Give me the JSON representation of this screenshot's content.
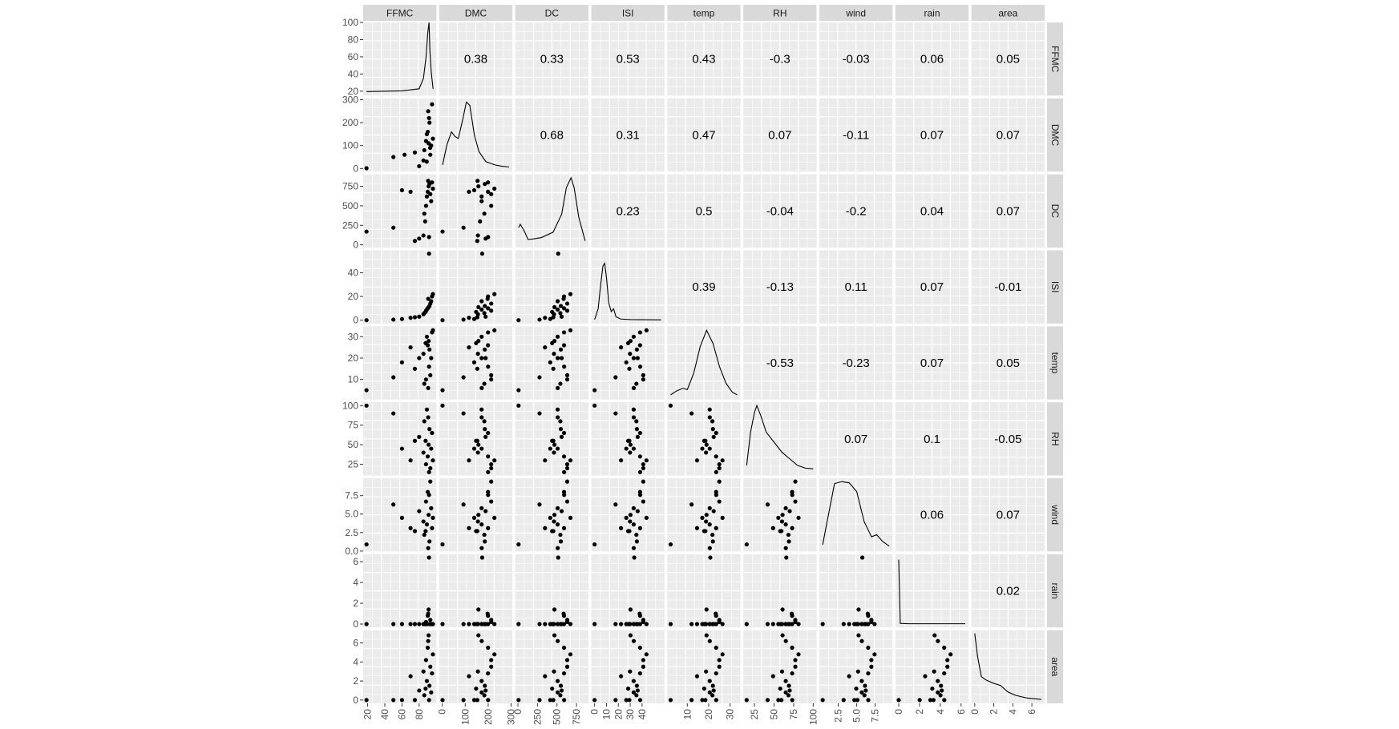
{
  "chart_data": {
    "type": "scatter",
    "variables": [
      "FFMC",
      "DMC",
      "DC",
      "ISI",
      "temp",
      "RH",
      "wind",
      "rain",
      "area"
    ],
    "ranges": {
      "FFMC": [
        18.7,
        96.2
      ],
      "DMC": [
        1.1,
        291.3
      ],
      "DC": [
        7.9,
        860.6
      ],
      "ISI": [
        0,
        56.1
      ],
      "temp": [
        2.2,
        33.3
      ],
      "RH": [
        15,
        100
      ],
      "wind": [
        0.4,
        9.4
      ],
      "rain": [
        0,
        6.4
      ],
      "area": [
        0,
        6.99
      ]
    },
    "x_ticks": {
      "FFMC": [
        "20",
        "40",
        "60",
        "80"
      ],
      "DMC": [
        "0",
        "100",
        "200",
        "300"
      ],
      "DC": [
        "0",
        "250",
        "500",
        "750"
      ],
      "ISI": [
        "0",
        "10",
        "20",
        "30",
        "40"
      ],
      "temp": [
        "10",
        "20",
        "30"
      ],
      "RH": [
        "25",
        "50",
        "75",
        "100"
      ],
      "wind": [
        "2.5",
        "5.0",
        "7.5"
      ],
      "rain": [
        "0",
        "2",
        "4",
        "6"
      ],
      "area": [
        "0",
        "2",
        "4",
        "6"
      ]
    },
    "y_ticks": {
      "FFMC": [
        "20",
        "40",
        "60",
        "80",
        "100"
      ],
      "DMC": [
        "0",
        "100",
        "200",
        "300"
      ],
      "DC": [
        "0",
        "250",
        "500",
        "750"
      ],
      "ISI": [
        "0",
        "20",
        "40"
      ],
      "temp": [
        "10",
        "20",
        "30"
      ],
      "RH": [
        "25",
        "50",
        "75",
        "100"
      ],
      "wind": [
        "0.0",
        "2.5",
        "5.0",
        "7.5"
      ],
      "rain": [
        "0",
        "2",
        "4",
        "6"
      ],
      "area": [
        "0",
        "2",
        "4",
        "6"
      ]
    },
    "correlations": [
      {
        "row": "FFMC",
        "col": "DMC",
        "value": "0.38"
      },
      {
        "row": "FFMC",
        "col": "DC",
        "value": "0.33"
      },
      {
        "row": "FFMC",
        "col": "ISI",
        "value": "0.53"
      },
      {
        "row": "FFMC",
        "col": "temp",
        "value": "0.43"
      },
      {
        "row": "FFMC",
        "col": "RH",
        "value": "-0.3"
      },
      {
        "row": "FFMC",
        "col": "wind",
        "value": "-0.03"
      },
      {
        "row": "FFMC",
        "col": "rain",
        "value": "0.06"
      },
      {
        "row": "FFMC",
        "col": "area",
        "value": "0.05"
      },
      {
        "row": "DMC",
        "col": "DC",
        "value": "0.68"
      },
      {
        "row": "DMC",
        "col": "ISI",
        "value": "0.31"
      },
      {
        "row": "DMC",
        "col": "temp",
        "value": "0.47"
      },
      {
        "row": "DMC",
        "col": "RH",
        "value": "0.07"
      },
      {
        "row": "DMC",
        "col": "wind",
        "value": "-0.11"
      },
      {
        "row": "DMC",
        "col": "rain",
        "value": "0.07"
      },
      {
        "row": "DMC",
        "col": "area",
        "value": "0.07"
      },
      {
        "row": "DC",
        "col": "ISI",
        "value": "0.23"
      },
      {
        "row": "DC",
        "col": "temp",
        "value": "0.5"
      },
      {
        "row": "DC",
        "col": "RH",
        "value": "-0.04"
      },
      {
        "row": "DC",
        "col": "wind",
        "value": "-0.2"
      },
      {
        "row": "DC",
        "col": "rain",
        "value": "0.04"
      },
      {
        "row": "DC",
        "col": "area",
        "value": "0.07"
      },
      {
        "row": "ISI",
        "col": "temp",
        "value": "0.39"
      },
      {
        "row": "ISI",
        "col": "RH",
        "value": "-0.13"
      },
      {
        "row": "ISI",
        "col": "wind",
        "value": "0.11"
      },
      {
        "row": "ISI",
        "col": "rain",
        "value": "0.07"
      },
      {
        "row": "ISI",
        "col": "area",
        "value": "-0.01"
      },
      {
        "row": "temp",
        "col": "RH",
        "value": "-0.53"
      },
      {
        "row": "temp",
        "col": "wind",
        "value": "-0.23"
      },
      {
        "row": "temp",
        "col": "rain",
        "value": "0.07"
      },
      {
        "row": "temp",
        "col": "area",
        "value": "0.05"
      },
      {
        "row": "RH",
        "col": "wind",
        "value": "0.07"
      },
      {
        "row": "RH",
        "col": "rain",
        "value": "0.1"
      },
      {
        "row": "RH",
        "col": "area",
        "value": "-0.05"
      },
      {
        "row": "wind",
        "col": "rain",
        "value": "0.06"
      },
      {
        "row": "wind",
        "col": "area",
        "value": "0.07"
      },
      {
        "row": "rain",
        "col": "area",
        "value": "0.02"
      }
    ],
    "density_shapes": {
      "FFMC": [
        [
          18.7,
          0.01
        ],
        [
          60,
          0.02
        ],
        [
          80,
          0.05
        ],
        [
          85,
          0.2
        ],
        [
          88,
          0.5
        ],
        [
          90,
          0.85
        ],
        [
          91.5,
          1.0
        ],
        [
          92.5,
          0.6
        ],
        [
          94,
          0.3
        ],
        [
          96.2,
          0.05
        ]
      ],
      "DMC": [
        [
          1.1,
          0.05
        ],
        [
          20,
          0.35
        ],
        [
          40,
          0.55
        ],
        [
          55,
          0.48
        ],
        [
          70,
          0.45
        ],
        [
          90,
          0.75
        ],
        [
          105,
          1.0
        ],
        [
          120,
          0.95
        ],
        [
          140,
          0.5
        ],
        [
          160,
          0.25
        ],
        [
          190,
          0.1
        ],
        [
          230,
          0.05
        ],
        [
          260,
          0.03
        ],
        [
          291.3,
          0.02
        ]
      ],
      "DC": [
        [
          7.9,
          0.25
        ],
        [
          30,
          0.3
        ],
        [
          80,
          0.2
        ],
        [
          130,
          0.07
        ],
        [
          200,
          0.08
        ],
        [
          300,
          0.1
        ],
        [
          450,
          0.18
        ],
        [
          560,
          0.45
        ],
        [
          620,
          0.85
        ],
        [
          680,
          1.0
        ],
        [
          720,
          0.85
        ],
        [
          780,
          0.4
        ],
        [
          860.6,
          0.05
        ]
      ],
      "ISI": [
        [
          0,
          0.01
        ],
        [
          3,
          0.2
        ],
        [
          5,
          0.6
        ],
        [
          7,
          0.95
        ],
        [
          8.5,
          1.0
        ],
        [
          10,
          0.75
        ],
        [
          12,
          0.3
        ],
        [
          14,
          0.15
        ],
        [
          16,
          0.2
        ],
        [
          18,
          0.06
        ],
        [
          22,
          0.02
        ],
        [
          30,
          0.01
        ],
        [
          56.1,
          0.005
        ]
      ],
      "temp": [
        [
          2.2,
          0.02
        ],
        [
          5,
          0.08
        ],
        [
          8,
          0.12
        ],
        [
          10,
          0.1
        ],
        [
          13,
          0.35
        ],
        [
          16,
          0.75
        ],
        [
          19,
          1.0
        ],
        [
          22,
          0.8
        ],
        [
          25,
          0.45
        ],
        [
          28,
          0.2
        ],
        [
          31,
          0.06
        ],
        [
          33.3,
          0.02
        ]
      ],
      "RH": [
        [
          15,
          0.1
        ],
        [
          20,
          0.6
        ],
        [
          25,
          0.9
        ],
        [
          28,
          1.0
        ],
        [
          33,
          0.85
        ],
        [
          40,
          0.6
        ],
        [
          50,
          0.45
        ],
        [
          60,
          0.3
        ],
        [
          70,
          0.2
        ],
        [
          80,
          0.1
        ],
        [
          90,
          0.06
        ],
        [
          100,
          0.05
        ]
      ],
      "wind": [
        [
          0.4,
          0.05
        ],
        [
          1,
          0.4
        ],
        [
          2,
          0.97
        ],
        [
          3,
          1.0
        ],
        [
          4,
          0.98
        ],
        [
          5,
          0.85
        ],
        [
          6,
          0.4
        ],
        [
          7,
          0.17
        ],
        [
          7.7,
          0.2
        ],
        [
          8.5,
          0.1
        ],
        [
          9.4,
          0.03
        ]
      ],
      "rain": [
        [
          0,
          1.0
        ],
        [
          0.15,
          0.01
        ],
        [
          1,
          0.005
        ],
        [
          6.4,
          0.005
        ]
      ],
      "area": [
        [
          0,
          1.0
        ],
        [
          0.3,
          0.65
        ],
        [
          0.7,
          0.35
        ],
        [
          1.2,
          0.3
        ],
        [
          2,
          0.25
        ],
        [
          2.7,
          0.22
        ],
        [
          3.5,
          0.12
        ],
        [
          4.3,
          0.07
        ],
        [
          5.5,
          0.03
        ],
        [
          6.99,
          0.01
        ]
      ]
    },
    "density_peak": {
      "FFMC": 100,
      "DMC": 290,
      "DC": 860,
      "ISI": 48,
      "temp": 33,
      "RH": 100,
      "wind": 9.4,
      "rain": 6.2,
      "area": 7.0
    },
    "scatter_points": {
      "FFMC": [
        [
          18.7,
          0.0
        ],
        [
          50,
          0
        ],
        [
          75,
          0.0
        ],
        [
          85,
          0.0
        ],
        [
          88.5,
          0.0
        ],
        [
          90,
          0.0
        ],
        [
          91,
          0.0
        ],
        [
          92.5,
          0.0
        ]
      ],
      "DMC": [
        [
          18.7,
          1.1
        ],
        [
          50,
          50
        ],
        [
          63,
          60
        ],
        [
          75,
          70
        ],
        [
          80,
          10
        ],
        [
          85,
          35
        ],
        [
          86,
          80
        ],
        [
          88,
          120
        ],
        [
          89,
          150
        ],
        [
          90,
          160
        ],
        [
          91,
          110
        ],
        [
          92,
          200
        ],
        [
          93,
          60
        ],
        [
          94,
          100
        ],
        [
          95,
          280
        ],
        [
          90.5,
          250
        ],
        [
          91.5,
          220
        ],
        [
          88.8,
          30
        ],
        [
          92.8,
          90
        ],
        [
          96,
          130
        ]
      ],
      "DC": [
        [
          18.7,
          170
        ],
        [
          50,
          220
        ],
        [
          60,
          700
        ],
        [
          70,
          680
        ],
        [
          75,
          50
        ],
        [
          80,
          80
        ],
        [
          85,
          120
        ],
        [
          86,
          400
        ],
        [
          88,
          500
        ],
        [
          89,
          620
        ],
        [
          90,
          680
        ],
        [
          91,
          750
        ],
        [
          92,
          780
        ],
        [
          93,
          650
        ],
        [
          94,
          560
        ],
        [
          95,
          800
        ],
        [
          96,
          720
        ],
        [
          87,
          300
        ],
        [
          91.5,
          100
        ],
        [
          90.5,
          820
        ]
      ],
      "ISI": [
        [
          18.7,
          0.0
        ],
        [
          50,
          0.5
        ],
        [
          60,
          1
        ],
        [
          70,
          2
        ],
        [
          75,
          2.5
        ],
        [
          80,
          3
        ],
        [
          85,
          5
        ],
        [
          86,
          6
        ],
        [
          88,
          8
        ],
        [
          89,
          9
        ],
        [
          90,
          10
        ],
        [
          91,
          11
        ],
        [
          92,
          12
        ],
        [
          93,
          14
        ],
        [
          94,
          16
        ],
        [
          95,
          20
        ],
        [
          96,
          22
        ],
        [
          91.5,
          56.1
        ],
        [
          90.5,
          18
        ],
        [
          87.5,
          7
        ]
      ],
      "temp": [
        [
          18.7,
          5
        ],
        [
          50,
          11
        ],
        [
          60,
          18
        ],
        [
          70,
          25
        ],
        [
          75,
          15
        ],
        [
          80,
          20
        ],
        [
          85,
          22
        ],
        [
          86,
          8
        ],
        [
          88,
          10
        ],
        [
          89,
          30
        ],
        [
          90,
          26
        ],
        [
          91,
          28
        ],
        [
          92,
          24
        ],
        [
          93,
          12
        ],
        [
          94,
          20
        ],
        [
          95,
          32
        ],
        [
          96,
          33
        ],
        [
          90.5,
          6
        ],
        [
          91.5,
          16
        ],
        [
          87.5,
          27
        ]
      ],
      "RH": [
        [
          18.7,
          100
        ],
        [
          50,
          90
        ],
        [
          60,
          45
        ],
        [
          70,
          30
        ],
        [
          75,
          55
        ],
        [
          80,
          60
        ],
        [
          85,
          40
        ],
        [
          86,
          80
        ],
        [
          88,
          25
        ],
        [
          89,
          95
        ],
        [
          90,
          35
        ],
        [
          91,
          50
        ],
        [
          92,
          70
        ],
        [
          93,
          20
        ],
        [
          94,
          45
        ],
        [
          95,
          65
        ],
        [
          96,
          30
        ],
        [
          90.5,
          85
        ],
        [
          91.5,
          15
        ],
        [
          87.5,
          55
        ]
      ],
      "wind": [
        [
          18.7,
          0.9
        ],
        [
          50,
          6.3
        ],
        [
          60,
          4.5
        ],
        [
          70,
          3.1
        ],
        [
          75,
          2.7
        ],
        [
          80,
          5.4
        ],
        [
          85,
          4.0
        ],
        [
          86,
          2.2
        ],
        [
          88,
          6.7
        ],
        [
          89,
          3.6
        ],
        [
          90,
          8.0
        ],
        [
          91,
          4.9
        ],
        [
          92,
          1.3
        ],
        [
          93,
          9.4
        ],
        [
          94,
          5.8
        ],
        [
          95,
          3.1
        ],
        [
          96,
          4.5
        ],
        [
          90.5,
          0.4
        ],
        [
          91.5,
          7.6
        ],
        [
          87.5,
          2.7
        ]
      ],
      "rain": [
        [
          18.7,
          0
        ],
        [
          50,
          0
        ],
        [
          60,
          0
        ],
        [
          70,
          0
        ],
        [
          75,
          0
        ],
        [
          80,
          0
        ],
        [
          85,
          0
        ],
        [
          86,
          0
        ],
        [
          88,
          0.2
        ],
        [
          89,
          0
        ],
        [
          90,
          0.8
        ],
        [
          91,
          1.4
        ],
        [
          92,
          0
        ],
        [
          93,
          0.4
        ],
        [
          94,
          0
        ],
        [
          95,
          0
        ],
        [
          96,
          0
        ],
        [
          91.5,
          6.4
        ],
        [
          90.5,
          1.0
        ],
        [
          87.5,
          0
        ]
      ],
      "area": [
        [
          18.7,
          0
        ],
        [
          50,
          0
        ],
        [
          60,
          0
        ],
        [
          70,
          2.5
        ],
        [
          75,
          0
        ],
        [
          80,
          1.0
        ],
        [
          85,
          3.0
        ],
        [
          86,
          0.5
        ],
        [
          88,
          4.2
        ],
        [
          89,
          2.0
        ],
        [
          90,
          5.5
        ],
        [
          91,
          6.8
        ],
        [
          92,
          1.5
        ],
        [
          93,
          3.5
        ],
        [
          94,
          0.8
        ],
        [
          95,
          2.8
        ],
        [
          96,
          4.8
        ],
        [
          90.5,
          6.2
        ],
        [
          91.5,
          0
        ],
        [
          87.5,
          1.2
        ]
      ]
    }
  }
}
